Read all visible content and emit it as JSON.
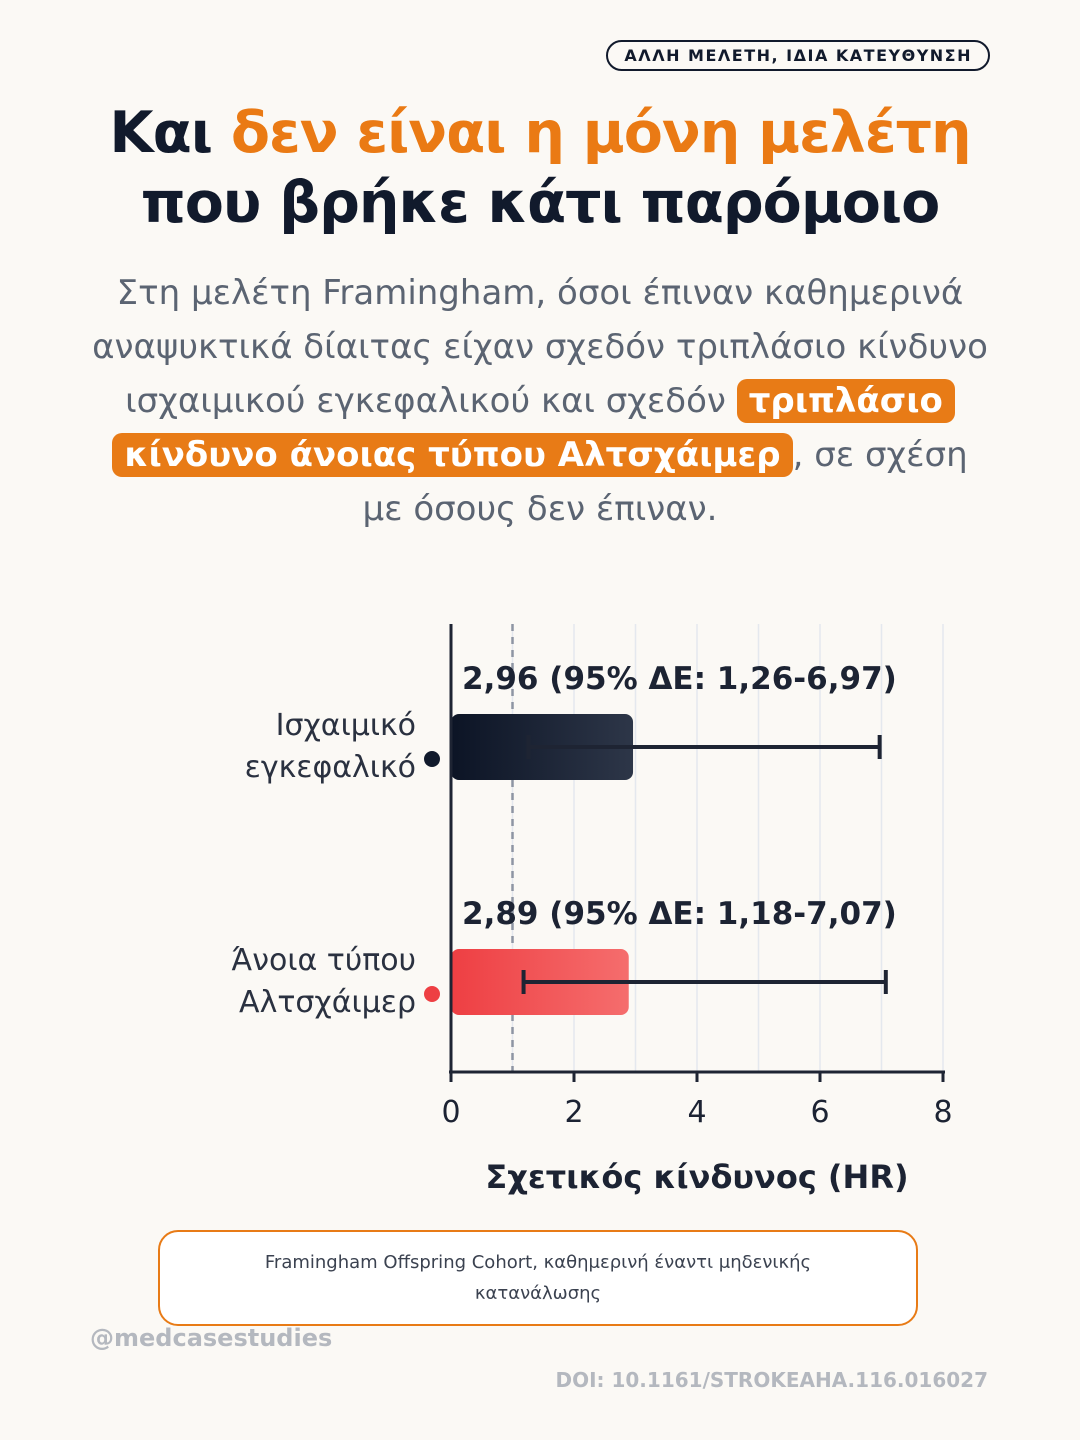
{
  "badge": "ΑΛΛΗ ΜΕΛΕΤΗ, ΙΔΙΑ ΚΑΤΕΥΘΥΝΣΗ",
  "title": {
    "part1": "Και ",
    "accent": "δεν είναι η μόνη μελέτη",
    "part2": "που βρήκε κάτι παρόμοιο"
  },
  "body": {
    "text1": "Στη μελέτη Framingham, όσοι έπιναν καθημερινά αναψυκτικά δίαιτας είχαν σχεδόν τριπλάσιο κίνδυνο ισχαιμικού εγκεφαλικού και σχεδόν ",
    "highlight": "τριπλάσιο κίνδυνο άνοιας τύπου Αλτσχάιμερ",
    "text2": ", σε σχέση με όσους δεν έπιναν."
  },
  "chart_data": {
    "type": "bar",
    "orientation": "horizontal",
    "categories": [
      "Ισχαιμικό εγκεφαλικό",
      "Άνοια τύπου Αλτσχάιμερ"
    ],
    "category_lines": [
      [
        "Ισχαιμικό",
        "εγκεφαλικό"
      ],
      [
        "Άνοια τύπου",
        "Αλτσχάιμερ"
      ]
    ],
    "values": [
      2.96,
      2.89
    ],
    "ci_low": [
      1.26,
      1.18
    ],
    "ci_high": [
      6.97,
      7.07
    ],
    "data_labels": [
      "2,96 (95% ΔΕ: 1,26-6,97)",
      "2,89 (95% ΔΕ: 1,18-7,07)"
    ],
    "xlim": [
      0,
      8
    ],
    "xticks": [
      0,
      2,
      4,
      6,
      8
    ],
    "xtick_labels": [
      "0",
      "2",
      "4",
      "6",
      "8"
    ],
    "reference_line": 1,
    "xlabel": "Σχετικός κίνδυνος (HR)",
    "ylabel": "",
    "grid": true,
    "colors": {
      "bar1_start": "#0c1425",
      "bar1_end": "#2d3648",
      "bar2_start": "#ee3f43",
      "bar2_end": "#f56d6d",
      "marker1": "#111a2c",
      "marker2": "#ee3f43",
      "axis": "#1e2433",
      "reference": "#8e95a3",
      "grid": "#e4e8ee"
    }
  },
  "note": "Framingham Offspring Cohort, καθημερινή έναντι μηδενικής κατανάλωσης",
  "footer": {
    "handle": "@medcasestudies",
    "doi": "DOI: 10.1161/STROKEAHA.116.016027"
  }
}
